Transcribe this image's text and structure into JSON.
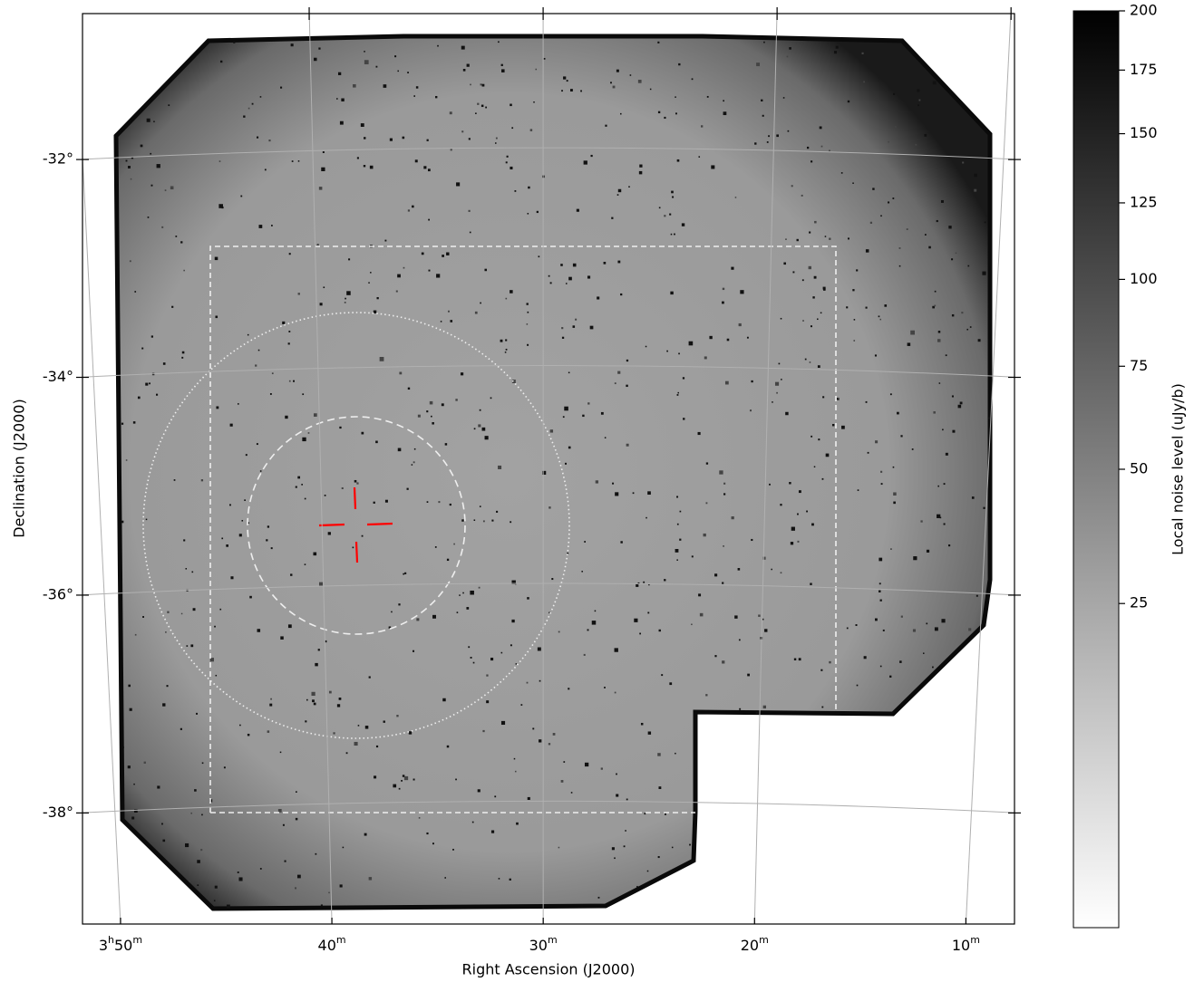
{
  "chart_data": {
    "type": "image",
    "xlabel": "Right Ascension (J2000)",
    "ylabel": "Declination (J2000)",
    "xlim": [
      51.8,
      7.7
    ],
    "xticks": [
      {
        "value": 50,
        "label": "3h50m"
      },
      {
        "value": 40,
        "label": "40m"
      },
      {
        "value": 30,
        "label": "30m"
      },
      {
        "value": 20,
        "label": "20m"
      },
      {
        "value": 10,
        "label": "10m"
      }
    ],
    "ylim": [
      -39.02,
      -30.66
    ],
    "yticks": [
      {
        "value": -32,
        "label": "-32°"
      },
      {
        "value": -34,
        "label": "-34°"
      },
      {
        "value": -36,
        "label": "-36°"
      },
      {
        "value": -38,
        "label": "-38°"
      }
    ],
    "grid": true,
    "colorbar": {
      "label": "Local noise level (uJy/b)",
      "clim": [
        0,
        200
      ],
      "ticks": [
        25,
        50,
        75,
        100,
        125,
        150,
        175,
        200
      ],
      "scale": "sqrt",
      "cmap": "gray_r"
    }
  }
}
